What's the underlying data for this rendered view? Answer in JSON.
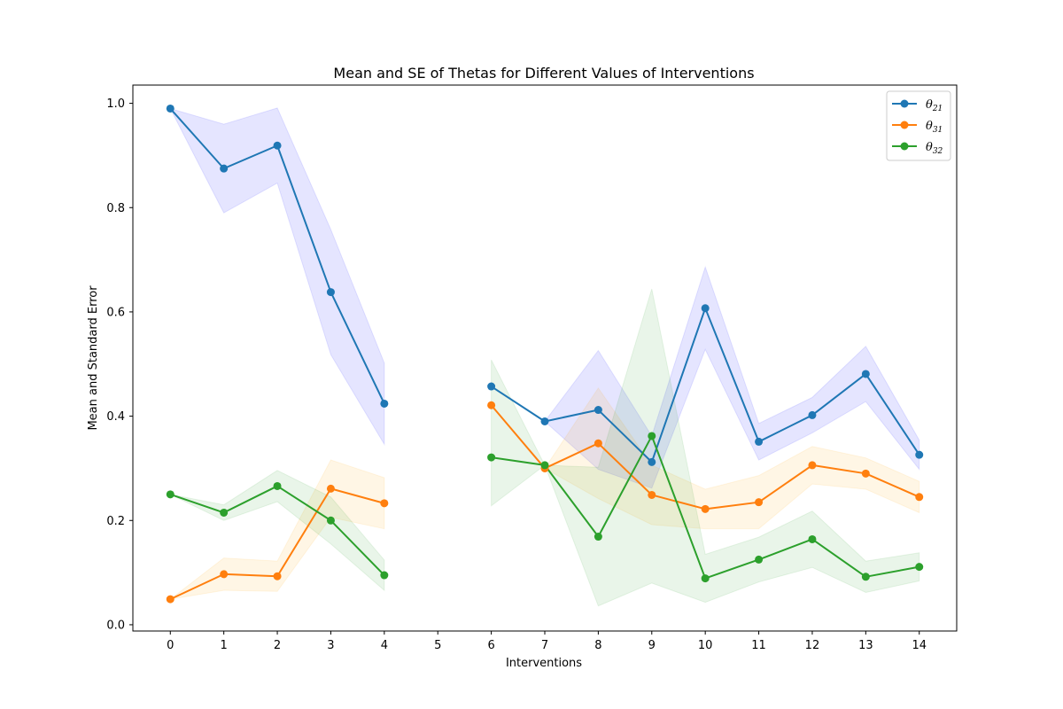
{
  "chart_data": {
    "type": "line",
    "title": "Mean and SE of Thetas for Different Values of Interventions",
    "xlabel": "Interventions",
    "ylabel": "Mean and Standard Error",
    "x_ticks": [
      0,
      1,
      2,
      3,
      4,
      5,
      6,
      7,
      8,
      9,
      10,
      11,
      12,
      13,
      14
    ],
    "x_range": [
      -0.7,
      14.7
    ],
    "y_ticks": [
      "0.0",
      "0.2",
      "0.4",
      "0.6",
      "0.8",
      "1.0"
    ],
    "y_range": [
      -0.012,
      1.035
    ],
    "grid": false,
    "legend_position": "top-right",
    "series": [
      {
        "name": "θ21",
        "legend_base": "θ",
        "legend_sub": "21",
        "color": "#1f77b4",
        "band_color": "#0000ff",
        "segments": [
          {
            "x": [
              0,
              1,
              2,
              3,
              4
            ],
            "y": [
              0.99,
              0.875,
              0.919,
              0.638,
              0.424
            ],
            "lower": [
              0.99,
              0.79,
              0.847,
              0.518,
              0.346
            ],
            "upper": [
              0.99,
              0.96,
              0.991,
              0.758,
              0.502
            ]
          },
          {
            "x": [
              6,
              7,
              8,
              9,
              10,
              11,
              12,
              13,
              14
            ],
            "y": [
              0.457,
              0.39,
              0.412,
              0.312,
              0.607,
              0.351,
              0.402,
              0.481,
              0.326
            ],
            "lower": [
              0.457,
              0.39,
              0.298,
              0.262,
              0.528,
              0.316,
              0.368,
              0.428,
              0.298
            ],
            "upper": [
              0.457,
              0.39,
              0.526,
              0.362,
              0.686,
              0.386,
              0.436,
              0.534,
              0.354
            ]
          }
        ]
      },
      {
        "name": "θ31",
        "legend_base": "θ",
        "legend_sub": "31",
        "color": "#ff7f0e",
        "band_color": "#ffa500",
        "segments": [
          {
            "x": [
              0,
              1,
              2,
              3,
              4
            ],
            "y": [
              0.049,
              0.097,
              0.093,
              0.261,
              0.233
            ],
            "lower": [
              0.049,
              0.066,
              0.064,
              0.206,
              0.184
            ],
            "upper": [
              0.049,
              0.128,
              0.122,
              0.316,
              0.282
            ]
          },
          {
            "x": [
              6,
              7,
              8,
              9,
              10,
              11,
              12,
              13,
              14
            ],
            "y": [
              0.421,
              0.3,
              0.348,
              0.249,
              0.222,
              0.235,
              0.306,
              0.29,
              0.245
            ],
            "lower": [
              0.421,
              0.3,
              0.242,
              0.192,
              0.184,
              0.184,
              0.27,
              0.26,
              0.215
            ],
            "upper": [
              0.421,
              0.3,
              0.454,
              0.306,
              0.26,
              0.286,
              0.342,
              0.32,
              0.275
            ]
          }
        ]
      },
      {
        "name": "θ32",
        "legend_base": "θ",
        "legend_sub": "32",
        "color": "#2ca02c",
        "band_color": "#2ca02c",
        "segments": [
          {
            "x": [
              0,
              1,
              2,
              3,
              4
            ],
            "y": [
              0.25,
              0.215,
              0.266,
              0.2,
              0.095
            ],
            "lower": [
              0.25,
              0.2,
              0.236,
              0.155,
              0.066
            ],
            "upper": [
              0.25,
              0.23,
              0.296,
              0.245,
              0.124
            ]
          },
          {
            "x": [
              6,
              7,
              8,
              9,
              10,
              11,
              12,
              13,
              14
            ],
            "y": [
              0.321,
              0.306,
              0.169,
              0.362,
              0.089,
              0.125,
              0.164,
              0.092,
              0.111
            ],
            "lower": [
              0.228,
              0.306,
              0.036,
              0.08,
              0.043,
              0.082,
              0.11,
              0.062,
              0.084
            ],
            "upper": [
              0.508,
              0.306,
              0.302,
              0.644,
              0.135,
              0.168,
              0.218,
              0.122,
              0.138
            ]
          }
        ]
      }
    ]
  }
}
